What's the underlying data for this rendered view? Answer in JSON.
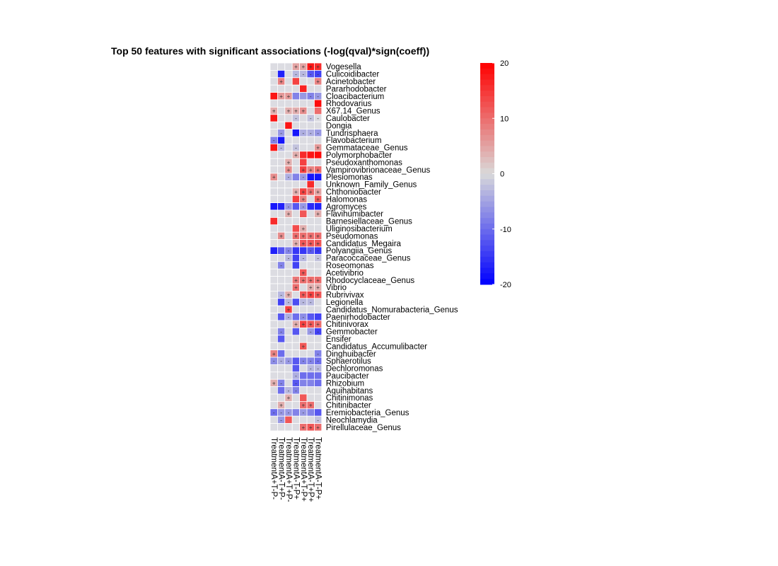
{
  "chart_data": {
    "type": "heatmap",
    "title": "Top 50 features with significant associations (-log(qval)*sign(coeff))",
    "columns": [
      "TreatmentA+T-P-",
      "TreatmentA-T+P-",
      "TreatmentA+T+P-",
      "TreatmentA-T-P+",
      "TreatmentA+T-P+",
      "TreatmentA-T+P+",
      "TreatmentA-T-P+"
    ],
    "rows": [
      {
        "label": "Vogesella",
        "values": [
          0,
          0,
          0,
          5,
          5,
          18,
          16
        ],
        "symbols": [
          "",
          "",
          "",
          "+",
          "+",
          "+",
          "+"
        ]
      },
      {
        "label": "Culicoidibacter",
        "values": [
          0,
          -17,
          0,
          -3,
          -3,
          -12,
          -14
        ],
        "symbols": [
          "",
          "",
          "",
          "-",
          "-",
          "-",
          "-"
        ]
      },
      {
        "label": "Acinetobacter",
        "values": [
          0,
          8,
          0,
          14,
          0,
          0,
          8
        ],
        "symbols": [
          "",
          "+",
          "",
          "",
          "",
          "",
          "+"
        ]
      },
      {
        "label": "Pararhodobacter",
        "values": [
          0,
          0,
          0,
          0,
          17,
          0,
          0
        ],
        "symbols": [
          "",
          "",
          "",
          "",
          "",
          "",
          ""
        ]
      },
      {
        "label": "Cloacibacterium",
        "values": [
          18,
          6,
          6,
          -8,
          -6,
          -8,
          -6
        ],
        "symbols": [
          "",
          "+",
          "+",
          "",
          "",
          "-",
          "-"
        ]
      },
      {
        "label": "Rhodovarius",
        "values": [
          0,
          0,
          0,
          0,
          0,
          0,
          19
        ],
        "symbols": [
          "",
          "",
          "",
          "",
          "",
          "",
          ""
        ]
      },
      {
        "label": "X67.14_Genus",
        "values": [
          4,
          0,
          4,
          4,
          7,
          0,
          10
        ],
        "symbols": [
          "+",
          "",
          "+",
          "+",
          "+",
          "",
          ""
        ]
      },
      {
        "label": "Caulobacter",
        "values": [
          18,
          0,
          0,
          -2,
          0,
          -2,
          0
        ],
        "symbols": [
          "",
          "",
          "",
          "-",
          "",
          "-",
          "-"
        ]
      },
      {
        "label": "Dongia",
        "values": [
          0,
          0,
          18,
          0,
          0,
          0,
          0
        ],
        "symbols": [
          "",
          "",
          "",
          "",
          "",
          "",
          ""
        ]
      },
      {
        "label": "Tundrisphaera",
        "values": [
          0,
          -6,
          0,
          -18,
          -4,
          -4,
          -6
        ],
        "symbols": [
          "",
          "-",
          "",
          "",
          "-",
          "-",
          "-"
        ]
      },
      {
        "label": "Flavobacterium",
        "values": [
          -8,
          -18,
          0,
          0,
          0,
          0,
          0
        ],
        "symbols": [
          "-",
          "",
          "",
          "",
          "",
          "",
          ""
        ]
      },
      {
        "label": "Gemmataceae_Genus",
        "values": [
          18,
          -3,
          0,
          -2,
          0,
          0,
          6
        ],
        "symbols": [
          "",
          "-",
          "",
          "-",
          "",
          "",
          "+"
        ]
      },
      {
        "label": "Polymorphobacter",
        "values": [
          0,
          0,
          0,
          4,
          16,
          18,
          19
        ],
        "symbols": [
          "",
          "",
          "",
          "+",
          "",
          "",
          ""
        ]
      },
      {
        "label": "Pseudoxanthomonas",
        "values": [
          0,
          0,
          4,
          0,
          14,
          0,
          0
        ],
        "symbols": [
          "",
          "",
          "+",
          "",
          "",
          "",
          ""
        ]
      },
      {
        "label": "Vampirovibrionaceae_Genus",
        "values": [
          0,
          0,
          7,
          0,
          14,
          8,
          10
        ],
        "symbols": [
          "",
          "",
          "+",
          "",
          "+",
          "+",
          "+"
        ]
      },
      {
        "label": "Plesiomonas",
        "values": [
          7,
          0,
          -4,
          -8,
          -6,
          -18,
          -18
        ],
        "symbols": [
          "+",
          "",
          "-",
          "",
          "-",
          "",
          ""
        ]
      },
      {
        "label": "Unknown_Family_Genus",
        "values": [
          0,
          0,
          0,
          0,
          0,
          16,
          0
        ],
        "symbols": [
          "",
          "",
          "",
          "",
          "",
          "",
          ""
        ]
      },
      {
        "label": "Chthoniobacter",
        "values": [
          0,
          0,
          0,
          4,
          14,
          10,
          5
        ],
        "symbols": [
          "",
          "",
          "",
          "+",
          "+",
          "+",
          "+"
        ]
      },
      {
        "label": "Halomonas",
        "values": [
          0,
          0,
          0,
          14,
          8,
          0,
          12
        ],
        "symbols": [
          "",
          "",
          "",
          "",
          "+",
          "",
          "+"
        ]
      },
      {
        "label": "Agromyces",
        "values": [
          -18,
          -17,
          -6,
          -12,
          -6,
          -16,
          -17
        ],
        "symbols": [
          "",
          "",
          "-",
          "",
          "-",
          "",
          ""
        ]
      },
      {
        "label": "Flavihumibacter",
        "values": [
          0,
          0,
          4,
          0,
          12,
          0,
          4
        ],
        "symbols": [
          "",
          "",
          "+",
          "",
          "",
          "",
          "+"
        ]
      },
      {
        "label": "Barnesiellaceae_Genus",
        "values": [
          16,
          0,
          0,
          0,
          0,
          0,
          0
        ],
        "symbols": [
          "",
          "",
          "",
          "",
          "",
          "",
          ""
        ]
      },
      {
        "label": "Uliginosibacterium",
        "values": [
          0,
          0,
          0,
          13,
          4,
          0,
          0
        ],
        "symbols": [
          "",
          "",
          "",
          "",
          "+",
          "",
          ""
        ]
      },
      {
        "label": "Pseudomonas",
        "values": [
          0,
          7,
          0,
          10,
          10,
          10,
          10
        ],
        "symbols": [
          "",
          "+",
          "",
          "+",
          "+",
          "+",
          "+"
        ]
      },
      {
        "label": "Candidatus_Megaira",
        "values": [
          0,
          0,
          0,
          4,
          12,
          12,
          12
        ],
        "symbols": [
          "",
          "",
          "",
          "+",
          "+",
          "+",
          "+"
        ]
      },
      {
        "label": "Polyangiia_Genus",
        "values": [
          -17,
          -12,
          -8,
          -15,
          -15,
          -12,
          -15
        ],
        "symbols": [
          "",
          "",
          "-",
          "",
          "",
          "-",
          "-"
        ]
      },
      {
        "label": "Paracoccaceae_Genus",
        "values": [
          0,
          0,
          -3,
          -14,
          -3,
          0,
          -2
        ],
        "symbols": [
          "",
          "",
          "-",
          "",
          "-",
          "",
          "-"
        ]
      },
      {
        "label": "Roseomonas",
        "values": [
          0,
          -8,
          0,
          -14,
          0,
          0,
          0
        ],
        "symbols": [
          "",
          "-",
          "",
          "",
          "",
          "",
          ""
        ]
      },
      {
        "label": "Acetivibrio",
        "values": [
          0,
          0,
          0,
          0,
          12,
          0,
          0
        ],
        "symbols": [
          "",
          "",
          "",
          "",
          "+",
          "",
          ""
        ]
      },
      {
        "label": "Rhodocyclaceae_Genus",
        "values": [
          0,
          0,
          0,
          9,
          10,
          10,
          10
        ],
        "symbols": [
          "",
          "",
          "",
          "+",
          "+",
          "+",
          "+"
        ]
      },
      {
        "label": "Vibrio",
        "values": [
          0,
          0,
          0,
          10,
          0,
          4,
          4
        ],
        "symbols": [
          "",
          "",
          "",
          "+",
          "",
          "+",
          "+"
        ]
      },
      {
        "label": "Rubrivivax",
        "values": [
          0,
          -3,
          4,
          0,
          12,
          14,
          12
        ],
        "symbols": [
          "",
          "-",
          "+",
          "",
          "+",
          "+",
          "+"
        ]
      },
      {
        "label": "Legionella",
        "values": [
          0,
          -14,
          -3,
          -13,
          -3,
          -3,
          0
        ],
        "symbols": [
          "",
          "",
          "-",
          "",
          "-",
          "-",
          ""
        ]
      },
      {
        "label": "Candidatus_Nomurabacteria_Genus",
        "values": [
          0,
          0,
          14,
          0,
          0,
          0,
          0
        ],
        "symbols": [
          "",
          "",
          "+",
          "",
          "",
          "",
          ""
        ]
      },
      {
        "label": "Paenirhodobacter",
        "values": [
          0,
          -12,
          -4,
          -10,
          -7,
          -12,
          -14
        ],
        "symbols": [
          "",
          "",
          "-",
          "",
          "-",
          "",
          ""
        ]
      },
      {
        "label": "Chitinivorax",
        "values": [
          0,
          0,
          0,
          4,
          14,
          12,
          10
        ],
        "symbols": [
          "",
          "",
          "",
          "+",
          "+",
          "+",
          "+"
        ]
      },
      {
        "label": "Gemmobacter",
        "values": [
          0,
          -8,
          0,
          -12,
          0,
          -6,
          -14
        ],
        "symbols": [
          "",
          "-",
          "",
          "",
          "",
          "-",
          "-"
        ]
      },
      {
        "label": "Ensifer",
        "values": [
          0,
          -12,
          0,
          0,
          0,
          0,
          0
        ],
        "symbols": [
          "",
          "",
          "",
          "",
          "",
          "",
          ""
        ]
      },
      {
        "label": "Candidatus_Accumulibacter",
        "values": [
          0,
          0,
          0,
          0,
          12,
          0,
          0
        ],
        "symbols": [
          "",
          "",
          "",
          "",
          "+",
          "",
          ""
        ]
      },
      {
        "label": "Dinghuibacter",
        "values": [
          8,
          -10,
          0,
          0,
          0,
          0,
          -8
        ],
        "symbols": [
          "+",
          "",
          "",
          "",
          "",
          "",
          "-"
        ]
      },
      {
        "label": "Sphaerotilus",
        "values": [
          -7,
          -4,
          -6,
          -12,
          -8,
          -8,
          -10
        ],
        "symbols": [
          "-",
          "-",
          "-",
          "",
          "-",
          "-",
          "-"
        ]
      },
      {
        "label": "Dechloromonas",
        "values": [
          0,
          0,
          0,
          -12,
          0,
          -3,
          -3
        ],
        "symbols": [
          "",
          "",
          "",
          "",
          "",
          "-",
          "-"
        ]
      },
      {
        "label": "Paucibacter",
        "values": [
          0,
          0,
          0,
          -4,
          -10,
          -10,
          -10
        ],
        "symbols": [
          "",
          "",
          "",
          "-",
          "",
          "",
          ""
        ]
      },
      {
        "label": "Rhizobium",
        "values": [
          4,
          -8,
          0,
          -12,
          -8,
          -8,
          -10
        ],
        "symbols": [
          "+",
          "-",
          "",
          "-",
          "",
          "",
          ""
        ]
      },
      {
        "label": "Aquihabitans",
        "values": [
          0,
          -10,
          -3,
          -8,
          0,
          0,
          0
        ],
        "symbols": [
          "",
          "",
          "-",
          "-",
          "",
          "",
          ""
        ]
      },
      {
        "label": "Chitinimonas",
        "values": [
          0,
          0,
          4,
          0,
          12,
          0,
          0
        ],
        "symbols": [
          "",
          "",
          "+",
          "",
          "",
          "",
          ""
        ]
      },
      {
        "label": "Chitinibacter",
        "values": [
          0,
          4,
          0,
          0,
          10,
          10,
          0
        ],
        "symbols": [
          "",
          "+",
          "",
          "",
          "+",
          "+",
          ""
        ]
      },
      {
        "label": "Eremiobacteria_Genus",
        "values": [
          -10,
          -6,
          -6,
          -8,
          -6,
          -8,
          -12
        ],
        "symbols": [
          "-",
          "-",
          "-",
          "",
          "-",
          "",
          ""
        ]
      },
      {
        "label": "Neochlamydia",
        "values": [
          0,
          -6,
          12,
          0,
          0,
          0,
          -2
        ],
        "symbols": [
          "",
          "-",
          "",
          "",
          "",
          "",
          "-"
        ]
      },
      {
        "label": "Pirellulaceae_Genus",
        "values": [
          0,
          0,
          0,
          0,
          10,
          12,
          10
        ],
        "symbols": [
          "",
          "",
          "",
          "",
          "+",
          "+",
          "+"
        ]
      }
    ],
    "colorbar": {
      "min": -20,
      "max": 20,
      "ticks": [
        20,
        10,
        0,
        -10,
        -20
      ],
      "low_color": "#0000FF",
      "mid_color": "#D9D9D9",
      "high_color": "#FF0000"
    },
    "empty_cell_color": "#DCDCE2",
    "grid_line_color": "#ffffff"
  }
}
